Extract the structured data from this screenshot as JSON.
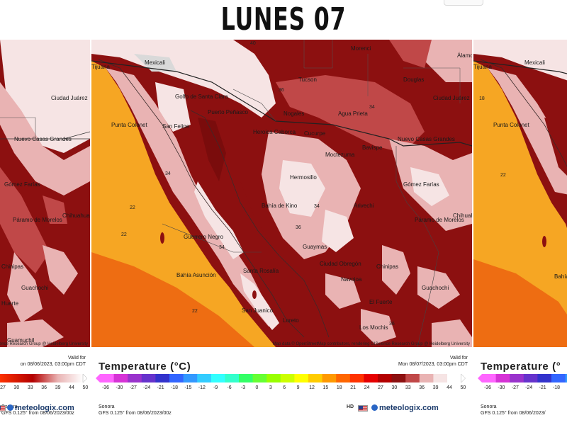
{
  "title": "LUNES 07",
  "panels": {
    "left": {
      "places": [
        "Ciudad Juárez",
        "Nuevo Casas Grandes",
        "Gómez Farías",
        "Páramo de Morelos",
        "Chihuahua",
        "Chinipas",
        "Guachochi",
        "Huerte",
        "Guamuchil"
      ],
      "legend_title": "Temperature (°C)",
      "ticks": [
        "27",
        "30",
        "33",
        "36",
        "39",
        "44",
        "50"
      ],
      "brand": "meteologix.com",
      "model_line1": "Sonora",
      "model_line2": "GFS 0.125° from 08/06/2023/00z",
      "valid_label": "Valid for",
      "valid_time": "on 08/06/2023, 03:00pm CDT",
      "credit": "Science Research Group @ Heidelberg University"
    },
    "center": {
      "places": {
        "mexicali": "Mexicali",
        "tijuana": "Tijuana",
        "golfo": "Golfo de Santa Clara",
        "puerto_penasco": "Puerto Peñasco",
        "san_felipe": "San Felipe",
        "punta_colonet": "Punta Colonet",
        "tucson": "Tucson",
        "morenci": "Morenci",
        "douglas": "Douglas",
        "ciudad_juarez": "Ciudad Juárez",
        "nogales": "Nogales",
        "agua_prieta": "Agua Prieta",
        "heroica_caborca": "Heroica Caborca",
        "cucurpe": "Cucurpe",
        "nuevo_casas_grandes": "Nuevo Casas Grandes",
        "bavispe": "Bavispe",
        "moctezuma": "Moctezuma",
        "hermosillo": "Hermosillo",
        "bahia_de_kino": "Bahía de Kino",
        "arivechi": "Arivechi",
        "gomez_farias": "Gómez Farías",
        "paramo": "Páramo de Morelos",
        "chihuahua": "Chihuahua",
        "guerrero_negro": "Guerrero Negro",
        "guaymas": "Guaymas",
        "ciudad_obregon": "Ciudad Obregón",
        "chinipas": "Chinipas",
        "santa_rosalia": "Santa Rosalía",
        "navojoa": "Navojoa",
        "bahia_asuncion": "Bahía Asunción",
        "guachochi": "Guachochi",
        "el_fuerte": "El Fuerte",
        "san_juanico": "San Juanico",
        "loreto": "Loreto",
        "los_mochis": "Los Mochis",
        "alamo": "Álamo"
      },
      "isolines": [
        "40",
        "22",
        "22",
        "22",
        "34",
        "34",
        "36",
        "36",
        "36",
        "34",
        "34"
      ],
      "credit": "Map data © OpenStreetMap contributors, rendering GIScience Research Group @ Heidelberg University",
      "valid_label": "Valid for",
      "valid_time": "Mon 08/07/2023, 03:00pm CDT",
      "legend_title": "Temperature (°C)",
      "ticks": [
        "-36",
        "-30",
        "-27",
        "-24",
        "-21",
        "-18",
        "-15",
        "-12",
        "-9",
        "-6",
        "-3",
        "0",
        "3",
        "6",
        "9",
        "12",
        "15",
        "18",
        "21",
        "24",
        "27",
        "30",
        "33",
        "36",
        "39",
        "44",
        "50"
      ],
      "hq": "HD",
      "brand": "meteologix.com",
      "model_line1": "Sonora",
      "model_line2": "GFS 0.125° from 08/06/2023/00z"
    },
    "right": {
      "places": [
        "Tijuana",
        "Mexicali",
        "Punta Colonet",
        "Bahía"
      ],
      "legend_title": "Temperature (°",
      "ticks": [
        "-36",
        "-30",
        "-27",
        "-24",
        "-21",
        "-18"
      ],
      "model_line1": "Sonora",
      "model_line2": "GFS 0.125° from 08/06/2023/",
      "isolines": [
        "22",
        "18"
      ]
    }
  },
  "colors": {
    "hot_red": "#8c1010",
    "warm_pink": "#e9b3b3",
    "land_light": "#f6e4e4",
    "ocean_orange": "#f6a623",
    "ocean_deep": "#ee6d12",
    "brand_blue": "#1b3a6b"
  },
  "scale_colors": [
    "#ff66ff",
    "#d633d6",
    "#9933cc",
    "#6633cc",
    "#3333cc",
    "#3366ff",
    "#3399ff",
    "#33ccff",
    "#33ffff",
    "#33ffcc",
    "#33ff66",
    "#66ff33",
    "#99ff00",
    "#ccff00",
    "#ffff00",
    "#ffcc00",
    "#ff9900",
    "#ff6600",
    "#ff3300",
    "#e60000",
    "#b30000",
    "#8c1010",
    "#c04848",
    "#e9b3b3",
    "#f6e4e4",
    "#ffffff"
  ]
}
